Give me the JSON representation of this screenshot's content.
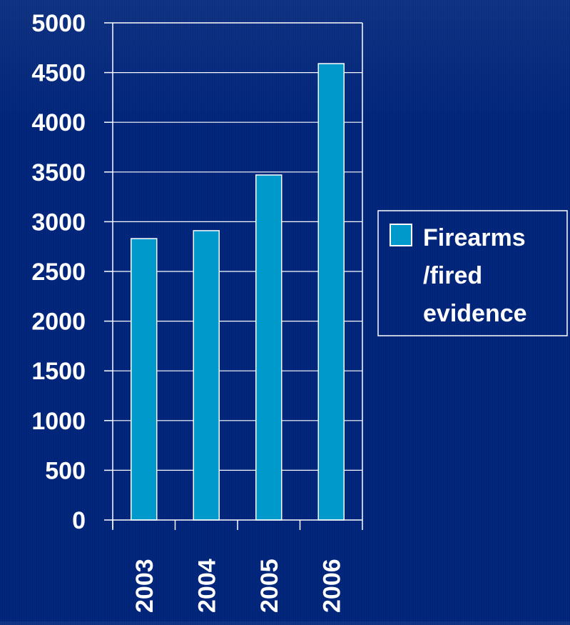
{
  "chart_data": {
    "type": "bar",
    "categories": [
      "2003",
      "2004",
      "2005",
      "2006"
    ],
    "series": [
      {
        "name": "Firearms /fired evidence",
        "values": [
          2830,
          2910,
          3470,
          4590
        ]
      }
    ],
    "title": "",
    "xlabel": "",
    "ylabel": "",
    "ylim": [
      0,
      5000
    ],
    "yticks": [
      0,
      500,
      1000,
      1500,
      2000,
      2500,
      3000,
      3500,
      4000,
      4500,
      5000
    ],
    "grid": true,
    "legend_position": "right",
    "legend_lines": [
      "Firearms",
      "/fired",
      "evidence"
    ]
  },
  "colors": {
    "background": "#00247a",
    "bar_fill": "#0099cc",
    "bar_stroke": "#ffffff",
    "axis": "#ffffff",
    "text": "#ffffff"
  }
}
